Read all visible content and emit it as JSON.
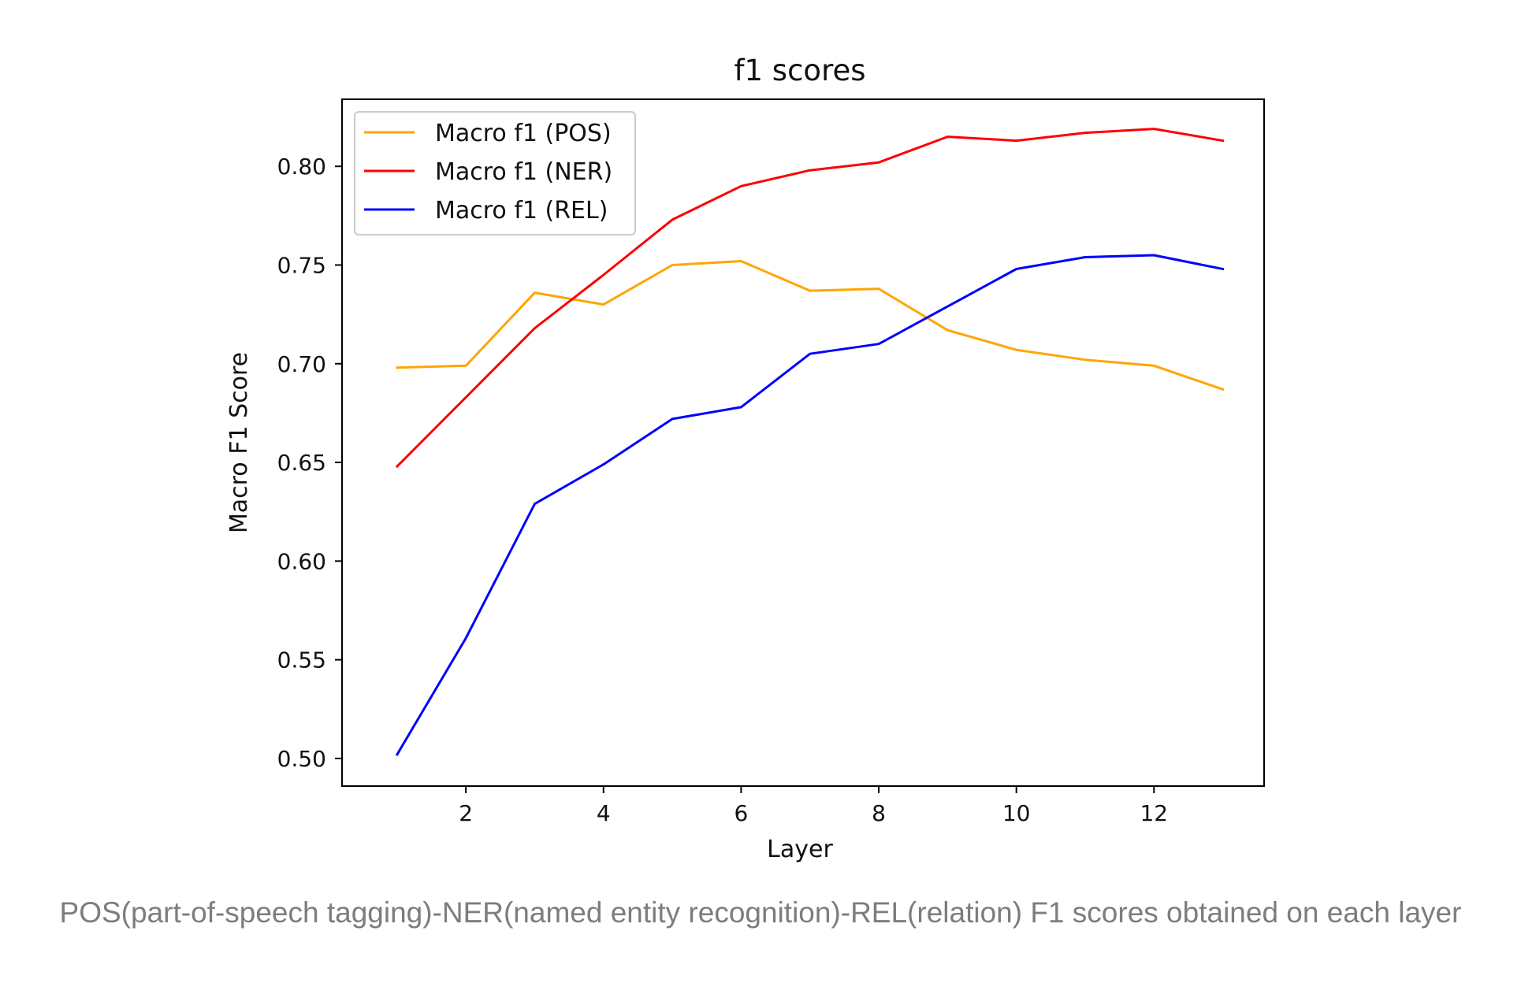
{
  "chart_data": {
    "type": "line",
    "title": "f1 scores",
    "xlabel": "Layer",
    "ylabel": "Macro F1 Score",
    "xlim": [
      0.2,
      13.6
    ],
    "ylim": [
      0.486,
      0.834
    ],
    "xticks": [
      2,
      4,
      6,
      8,
      10,
      12
    ],
    "yticks": [
      0.5,
      0.55,
      0.6,
      0.65,
      0.7,
      0.75,
      0.8
    ],
    "xtick_labels": [
      "2",
      "4",
      "6",
      "8",
      "10",
      "12"
    ],
    "ytick_labels": [
      "0.50",
      "0.55",
      "0.60",
      "0.65",
      "0.70",
      "0.75",
      "0.80"
    ],
    "grid": false,
    "legend_position": "upper-left",
    "x": [
      1,
      2,
      3,
      4,
      5,
      6,
      7,
      8,
      9,
      10,
      11,
      12,
      13
    ],
    "series": [
      {
        "name": "Macro f1 (POS)",
        "color": "#FFA500",
        "values": [
          0.698,
          0.699,
          0.736,
          0.73,
          0.75,
          0.752,
          0.737,
          0.738,
          0.717,
          0.707,
          0.702,
          0.699,
          0.687
        ]
      },
      {
        "name": "Macro f1 (NER)",
        "color": "#FF0000",
        "values": [
          0.648,
          0.683,
          0.718,
          0.745,
          0.773,
          0.79,
          0.798,
          0.802,
          0.815,
          0.813,
          0.817,
          0.819,
          0.813
        ]
      },
      {
        "name": "Macro f1 (REL)",
        "color": "#0000FF",
        "values": [
          0.502,
          0.561,
          0.629,
          0.649,
          0.672,
          0.678,
          0.705,
          0.71,
          0.729,
          0.748,
          0.754,
          0.755,
          0.748
        ]
      }
    ]
  },
  "caption": "POS(part-of-speech tagging)-NER(named entity recognition)-REL(relation) F1 scores obtained on each layer"
}
